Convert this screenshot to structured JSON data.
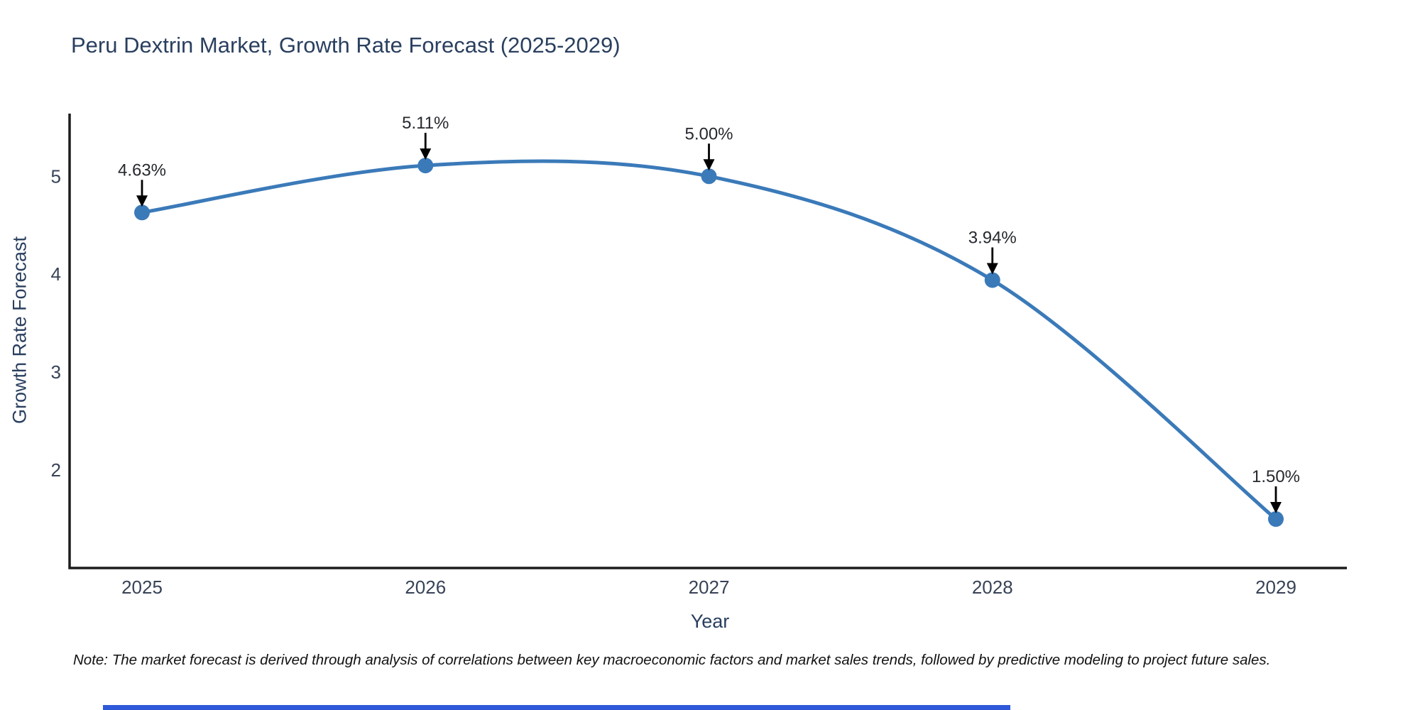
{
  "page": {
    "note": "Note: The market forecast is derived through analysis of correlations between key macroeconomic factors and market sales trends, followed by predictive modeling to project future sales."
  },
  "chart_data": {
    "type": "line",
    "line_shape": "spline",
    "title": "Peru Dextrin Market, Growth Rate Forecast (2025-2029)",
    "xlabel": "Year",
    "ylabel": "Growth Rate Forecast",
    "categories": [
      2025,
      2026,
      2027,
      2028,
      2029
    ],
    "series": [
      {
        "name": "Growth Rate Forecast",
        "values": [
          4.63,
          5.11,
          5.0,
          3.94,
          1.5
        ]
      }
    ],
    "point_labels": [
      "4.63%",
      "5.11%",
      "5.00%",
      "3.94%",
      "1.50%"
    ],
    "x_tick_labels": [
      "2025",
      "2026",
      "2027",
      "2028",
      "2029"
    ],
    "y_tick_values": [
      2,
      3,
      4,
      5
    ],
    "ylim": [
      1.0,
      5.64
    ],
    "grid": false,
    "legend_position": "none",
    "marker": "circle",
    "colors": {
      "line": "#3b7ab9",
      "marker": "#3b7ab9",
      "annotation_arrow": "#000000"
    }
  },
  "colors": {
    "title_text": "#2a3f5f",
    "axis_title_text": "#2a3f5f",
    "tick_text": "#384357",
    "annotation_text": "#26292e",
    "axis_line": "#1c1c1c",
    "note_text": "#111111",
    "footer_bar": "#2e59d9",
    "background": "#ffffff"
  }
}
